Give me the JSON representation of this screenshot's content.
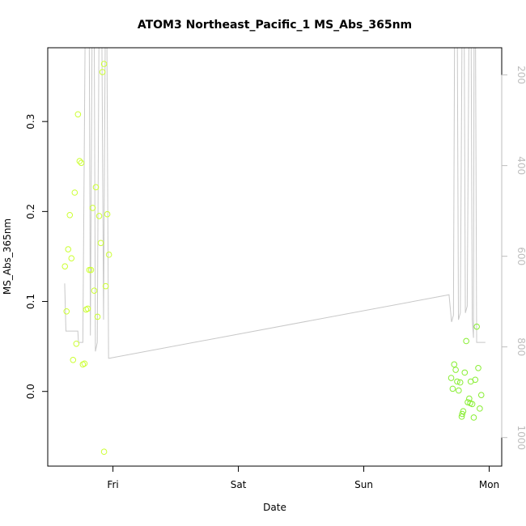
{
  "chart_data": {
    "type": "scatter",
    "title": "ATOM3 Northeast_Pacific_1 MS_Abs_365nm",
    "xlabel": "Date",
    "ylabel": "MS_Abs_365nm",
    "x_unit": "days",
    "x_range": [
      -0.52,
      3.1
    ],
    "xticks": [
      {
        "value": 0,
        "label": "Fri"
      },
      {
        "value": 1,
        "label": "Sat"
      },
      {
        "value": 2,
        "label": "Sun"
      },
      {
        "value": 3,
        "label": "Mon"
      }
    ],
    "y_range": [
      -0.083,
      0.382
    ],
    "yticks": [
      {
        "value": 0.0,
        "label": "0.0"
      },
      {
        "value": 0.1,
        "label": "0.1"
      },
      {
        "value": 0.2,
        "label": "0.2"
      },
      {
        "value": 0.3,
        "label": "0.3"
      }
    ],
    "y2_range": [
      1063,
      140
    ],
    "y2ticks": [
      {
        "value": 200,
        "label": "200"
      },
      {
        "value": 400,
        "label": "400"
      },
      {
        "value": 600,
        "label": "600"
      },
      {
        "value": 800,
        "label": "800"
      },
      {
        "value": 1000,
        "label": "1000"
      }
    ],
    "grid": false,
    "legend": "none",
    "colors": {
      "scatter_friday": "#ccff33",
      "scatter_monday": "#88ee33",
      "pressure_line": "#c8c8c8",
      "axis": "#000000",
      "right_axis": "#bebebe"
    },
    "series": [
      {
        "role": "scatter",
        "color": "#ccff33",
        "points": [
          [
            -0.383,
            0.139
          ],
          [
            -0.37,
            0.089
          ],
          [
            -0.357,
            0.158
          ],
          [
            -0.344,
            0.196
          ],
          [
            -0.331,
            0.148
          ],
          [
            -0.318,
            0.035
          ],
          [
            -0.305,
            0.221
          ],
          [
            -0.292,
            0.053
          ],
          [
            -0.279,
            0.308
          ],
          [
            -0.266,
            0.256
          ],
          [
            -0.253,
            0.254
          ],
          [
            -0.24,
            0.03
          ],
          [
            -0.227,
            0.031
          ],
          [
            -0.214,
            0.091
          ],
          [
            -0.201,
            0.092
          ],
          [
            -0.188,
            0.135
          ],
          [
            -0.175,
            0.135
          ],
          [
            -0.162,
            0.204
          ],
          [
            -0.149,
            0.112
          ],
          [
            -0.136,
            0.227
          ],
          [
            -0.123,
            0.083
          ],
          [
            -0.11,
            0.195
          ],
          [
            -0.097,
            0.165
          ],
          [
            -0.084,
            0.355
          ],
          [
            -0.071,
            0.364
          ],
          [
            -0.058,
            0.117
          ],
          [
            -0.045,
            0.197
          ],
          [
            -0.032,
            0.152
          ],
          [
            -0.071,
            -0.067
          ]
        ]
      },
      {
        "role": "scatter",
        "color": "#88ee33",
        "points": [
          [
            2.697,
            0.015
          ],
          [
            2.709,
            0.003
          ],
          [
            2.721,
            0.03
          ],
          [
            2.733,
            0.024
          ],
          [
            2.745,
            0.011
          ],
          [
            2.757,
            0.001
          ],
          [
            2.769,
            0.01
          ],
          [
            2.781,
            -0.028
          ],
          [
            2.793,
            -0.022
          ],
          [
            2.805,
            0.021
          ],
          [
            2.817,
            0.056
          ],
          [
            2.829,
            -0.012
          ],
          [
            2.841,
            -0.008
          ],
          [
            2.853,
            0.011
          ],
          [
            2.865,
            -0.014
          ],
          [
            2.877,
            -0.029
          ],
          [
            2.889,
            0.013
          ],
          [
            2.901,
            0.072
          ],
          [
            2.913,
            0.026
          ],
          [
            2.925,
            -0.019
          ],
          [
            2.937,
            -0.004
          ],
          [
            2.785,
            -0.025
          ],
          [
            2.849,
            -0.013
          ]
        ]
      },
      {
        "role": "line",
        "axis": "right",
        "color": "#c8c8c8",
        "points": [
          [
            -0.385,
            660
          ],
          [
            -0.375,
            765
          ],
          [
            -0.28,
            765
          ],
          [
            -0.275,
            790
          ],
          [
            -0.24,
            790
          ],
          [
            -0.22,
            40
          ],
          [
            -0.19,
            40
          ],
          [
            -0.18,
            775
          ],
          [
            -0.165,
            40
          ],
          [
            -0.15,
            40
          ],
          [
            -0.14,
            810
          ],
          [
            -0.125,
            790
          ],
          [
            -0.11,
            40
          ],
          [
            -0.09,
            40
          ],
          [
            -0.075,
            740
          ],
          [
            -0.06,
            40
          ],
          [
            -0.05,
            40
          ],
          [
            -0.035,
            825
          ],
          [
            -0.03,
            825
          ],
          [
            2.68,
            685
          ],
          [
            2.7,
            745
          ],
          [
            2.715,
            730
          ],
          [
            2.725,
            40
          ],
          [
            2.745,
            40
          ],
          [
            2.755,
            740
          ],
          [
            2.77,
            725
          ],
          [
            2.785,
            40
          ],
          [
            2.8,
            40
          ],
          [
            2.81,
            725
          ],
          [
            2.825,
            710
          ],
          [
            2.84,
            40
          ],
          [
            2.855,
            40
          ],
          [
            2.865,
            740
          ],
          [
            2.875,
            780
          ],
          [
            2.88,
            40
          ],
          [
            2.89,
            40
          ],
          [
            2.9,
            790
          ],
          [
            2.97,
            790
          ]
        ]
      }
    ]
  }
}
